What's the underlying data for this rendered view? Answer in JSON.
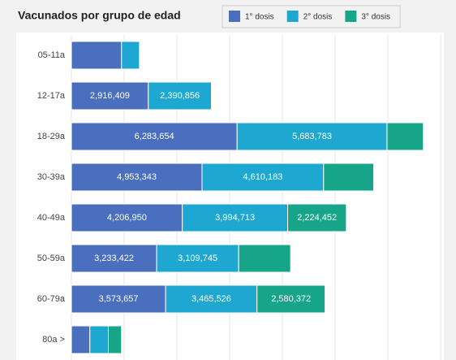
{
  "chart_data": {
    "type": "bar",
    "orientation": "horizontal",
    "stacked": true,
    "title": "Vacunados por grupo de edad",
    "categories": [
      "05-11a",
      "12-17a",
      "18-29a",
      "30-39a",
      "40-49a",
      "50-59a",
      "60-79a",
      "80a >"
    ],
    "series": [
      {
        "name": "1° dosis",
        "color": "#4a6fbf",
        "values": [
          1900000,
          2916409,
          6283654,
          4953343,
          4206950,
          3233422,
          3573657,
          700000
        ],
        "value_labels": [
          null,
          "2,916,409",
          "6,283,654",
          "4,953,343",
          "4,206,950",
          "3,233,422",
          "3,573,657",
          null
        ]
      },
      {
        "name": "2° dosis",
        "color": "#1ea7d0",
        "values": [
          680000,
          2390856,
          5683783,
          4610183,
          3994713,
          3109745,
          3465526,
          700000
        ],
        "value_labels": [
          null,
          "2,390,856",
          "5,683,783",
          "4,610,183",
          "3,994,713",
          "3,109,745",
          "3,465,526",
          null
        ]
      },
      {
        "name": "3° dosis",
        "color": "#17a589",
        "values": [
          null,
          null,
          1380000,
          1900000,
          2224452,
          1970000,
          2580372,
          500000
        ],
        "value_labels": [
          null,
          null,
          null,
          null,
          "2,224,452",
          null,
          "2,580,372",
          null
        ]
      }
    ],
    "xlim": [
      0,
      14000000
    ],
    "xticks": [
      0,
      2000000,
      4000000,
      6000000,
      8000000,
      10000000,
      12000000,
      14000000
    ],
    "grid": true,
    "legend": "top-right"
  }
}
